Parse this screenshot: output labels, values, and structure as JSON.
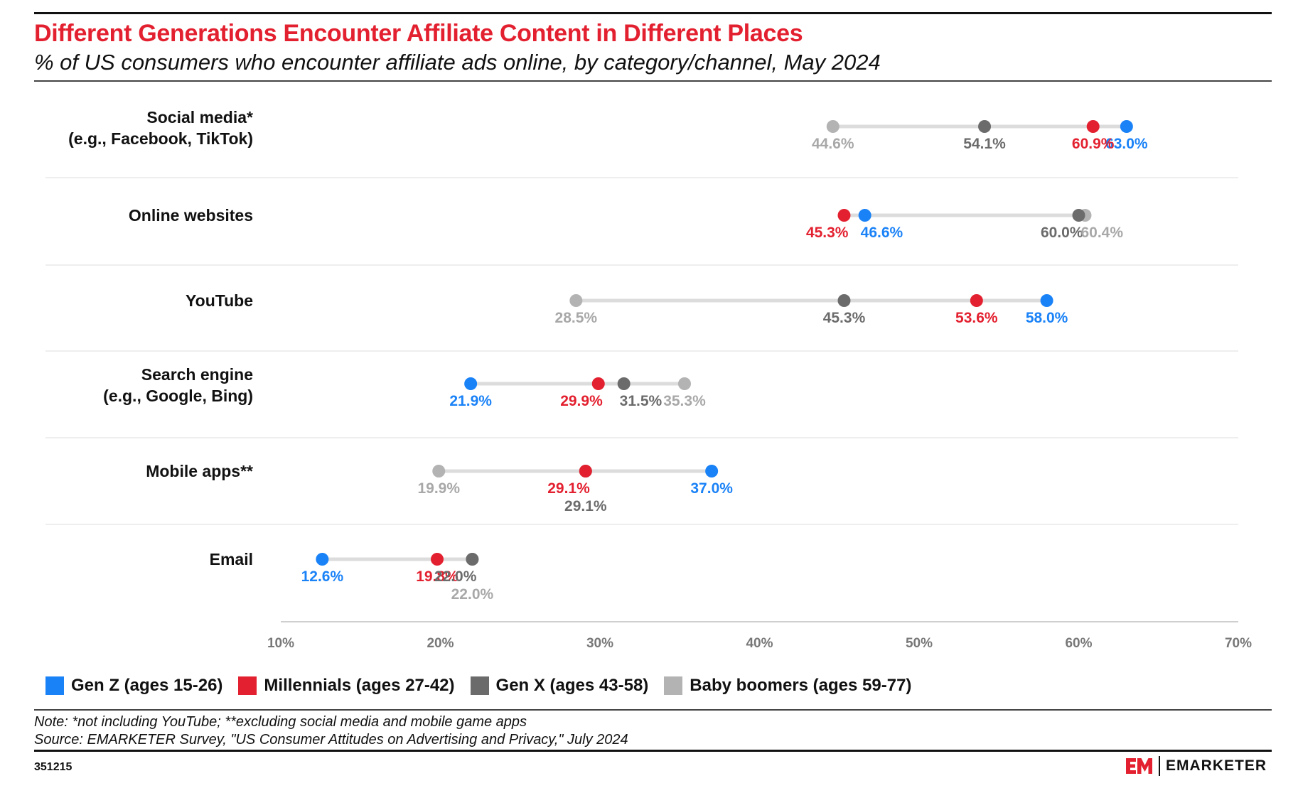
{
  "header": {
    "title": "Different Generations Encounter Affiliate Content in Different Places",
    "subtitle": "% of US consumers who encounter affiliate ads online, by category/channel, May 2024"
  },
  "colors": {
    "title": "#e3202f",
    "gen_z": "#1a82f7",
    "millennials": "#e3202f",
    "gen_x": "#6b6b6b",
    "baby_boomers": "#b3b3b3",
    "connector": "#dcdcdc"
  },
  "chart_data": {
    "type": "scatter",
    "subtype": "dot-plot",
    "xlim": [
      10,
      70
    ],
    "x_ticks": [
      "10%",
      "20%",
      "30%",
      "40%",
      "50%",
      "60%",
      "70%"
    ],
    "grid": false,
    "legend_position": "bottom-left",
    "categories": [
      [
        "Social media*",
        "(e.g., Facebook, TikTok)"
      ],
      [
        "Online websites"
      ],
      [
        "YouTube"
      ],
      [
        "Search engine",
        "(e.g., Google, Bing)"
      ],
      [
        "Mobile apps**"
      ],
      [
        "Email"
      ]
    ],
    "series": [
      {
        "name": "Gen Z (ages 15-26)",
        "color": "#1a82f7",
        "values": [
          63.0,
          46.6,
          58.0,
          21.9,
          37.0,
          12.6
        ]
      },
      {
        "name": "Millennials (ages 27-42)",
        "color": "#e3202f",
        "values": [
          60.9,
          45.3,
          53.6,
          29.9,
          29.1,
          19.8
        ]
      },
      {
        "name": "Gen X (ages 43-58)",
        "color": "#6b6b6b",
        "values": [
          54.1,
          60.0,
          45.3,
          31.5,
          29.1,
          22.0
        ]
      },
      {
        "name": "Baby boomers (ages 59-77)",
        "color": "#b3b3b3",
        "values": [
          44.6,
          60.4,
          28.5,
          35.3,
          19.9,
          22.0
        ]
      }
    ]
  },
  "footer": {
    "note": "Note: *not including YouTube; **excluding social media and mobile game apps",
    "source": "Source: EMARKETER Survey, \"US Consumer Attitudes on Advertising and Privacy,\" July 2024",
    "chart_id": "351215",
    "brand": "EMARKETER"
  }
}
